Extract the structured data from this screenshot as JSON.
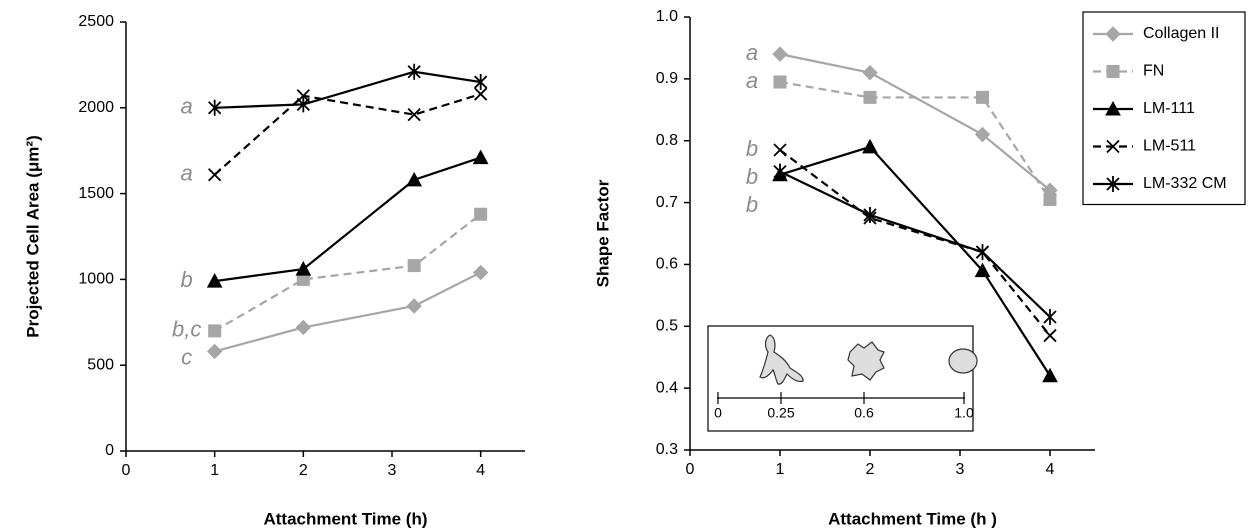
{
  "chart_data": [
    {
      "type": "line",
      "ylabel": "Projected Cell Area (μm²)",
      "xlabel": "Attachment Time (h)",
      "x": [
        1,
        2,
        3.25,
        4
      ],
      "xlim": [
        0,
        4.5
      ],
      "xticks": [
        0,
        1,
        2,
        3,
        4
      ],
      "ylim": [
        0,
        2500
      ],
      "yticks": [
        0,
        500,
        1000,
        1500,
        2000,
        2500
      ],
      "series": [
        {
          "letter": "c",
          "color": "#a6a6a6",
          "marker": "diamond",
          "dashed": false,
          "values": [
            580,
            720,
            845,
            1040
          ]
        },
        {
          "letter": "b,c",
          "color": "#a6a6a6",
          "marker": "square",
          "dashed": true,
          "values": [
            700,
            1000,
            1080,
            1380
          ]
        },
        {
          "letter": "b",
          "color": "#000000",
          "marker": "triangle",
          "dashed": false,
          "values": [
            990,
            1060,
            1580,
            1710
          ]
        },
        {
          "letter": "a",
          "color": "#000000",
          "marker": "x",
          "dashed": true,
          "values": [
            1610,
            2070,
            1960,
            2080
          ]
        },
        {
          "letter": "a",
          "color": "#000000",
          "marker": "asterisk",
          "dashed": false,
          "values": [
            2000,
            2020,
            2210,
            2150
          ]
        }
      ]
    },
    {
      "type": "line",
      "ylabel": "Shape Factor",
      "xlabel": "Attachment Time (h )",
      "x": [
        1,
        2,
        3.25,
        4
      ],
      "xlim": [
        0,
        4.5
      ],
      "xticks": [
        0,
        1,
        2,
        3,
        4
      ],
      "ylim": [
        0.3,
        1
      ],
      "yticks": [
        0.3,
        0.4,
        0.5,
        0.6,
        0.7,
        0.8,
        0.9,
        {
          "value": 1,
          "label": "1.0"
        }
      ],
      "legend": "upper right",
      "inset_labels": [
        "0",
        "0.25",
        "0.6",
        "1.0"
      ],
      "series": [
        {
          "name": "Collagen II",
          "letter": "a",
          "color": "#a6a6a6",
          "marker": "diamond",
          "dashed": false,
          "values": [
            0.94,
            0.91,
            0.81,
            0.72
          ]
        },
        {
          "name": "FN",
          "letter": "a",
          "color": "#a6a6a6",
          "marker": "square",
          "dashed": true,
          "values": [
            0.895,
            0.87,
            0.87,
            0.705
          ]
        },
        {
          "name": "LM-111",
          "letter": "b",
          "color": "#000000",
          "marker": "triangle",
          "dashed": false,
          "values": [
            0.745,
            0.79,
            0.59,
            0.42
          ]
        },
        {
          "name": "LM-511",
          "letter": "b",
          "color": "#000000",
          "marker": "x",
          "dashed": true,
          "values": [
            0.785,
            0.675,
            0.62,
            0.485
          ]
        },
        {
          "name": "LM-332 CM",
          "letter": "b",
          "color": "#000000",
          "marker": "asterisk",
          "dashed": false,
          "values": [
            0.75,
            0.68,
            0.62,
            0.515
          ]
        }
      ]
    }
  ]
}
